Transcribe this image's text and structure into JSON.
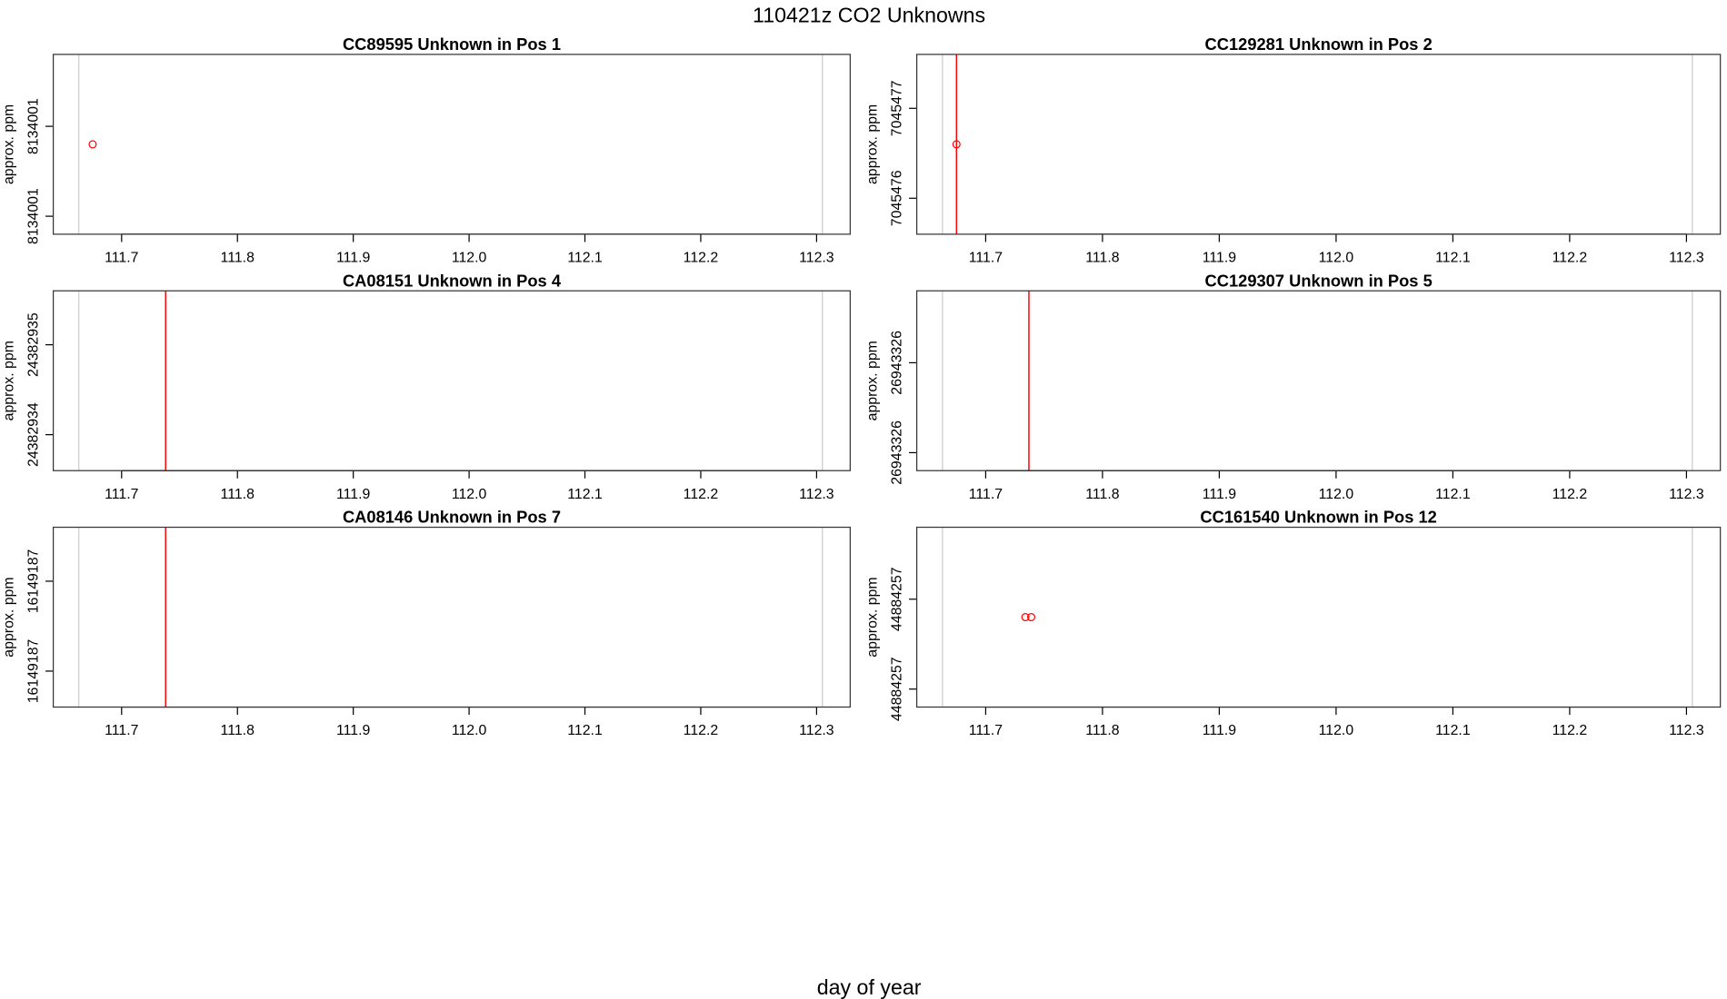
{
  "title": "110421z  CO2 Unknowns",
  "xlabel": "day of year",
  "chart_data": [
    {
      "type": "scatter",
      "title": "CC89595    Unknown in Pos 1",
      "ylabel": "approx. ppm",
      "xlim": [
        111.641,
        112.329
      ],
      "xticks": [
        111.7,
        111.8,
        111.9,
        {
          "value": 112,
          "label": "112.0"
        },
        112.1,
        112.2,
        112.3
      ],
      "ylim": [
        8134000.5,
        8134001.5
      ],
      "yticks": [
        {
          "value": 8134000.6,
          "label": "8134001"
        },
        {
          "value": 8134001.1,
          "label": "8134001"
        }
      ],
      "x": [
        111.675
      ],
      "y": [
        8134001.0
      ],
      "color": "#ff0000",
      "guide_lines": {
        "color": "#d3d3d3",
        "values": [
          111.663,
          112.305
        ]
      },
      "event_lines": {
        "color": "#ff0000",
        "values": []
      }
    },
    {
      "type": "scatter",
      "title": "CC129281    Unknown in Pos 2",
      "ylabel": "approx. ppm",
      "xlim": [
        111.641,
        112.329
      ],
      "xticks": [
        111.7,
        111.8,
        111.9,
        {
          "value": 112,
          "label": "112.0"
        },
        112.1,
        112.2,
        112.3
      ],
      "ylim": [
        7045476.1,
        7045477.1
      ],
      "yticks": [
        {
          "value": 7045476.3,
          "label": "7045476"
        },
        {
          "value": 7045476.8,
          "label": "7045477"
        }
      ],
      "x": [
        111.675
      ],
      "y": [
        7045476.6
      ],
      "color": "#ff0000",
      "guide_lines": {
        "color": "#d3d3d3",
        "values": [
          111.663,
          112.305
        ]
      },
      "event_lines": {
        "color": "#ff0000",
        "values": [
          111.675
        ]
      }
    },
    {
      "type": "scatter",
      "title": "CA08151    Unknown in Pos 4",
      "ylabel": "approx. ppm",
      "xlim": [
        111.641,
        112.329
      ],
      "xticks": [
        111.7,
        111.8,
        111.9,
        {
          "value": 112,
          "label": "112.0"
        },
        112.1,
        112.2,
        112.3
      ],
      "ylim": [
        24382934.1,
        24382935.1
      ],
      "yticks": [
        {
          "value": 24382934.3,
          "label": "24382934"
        },
        {
          "value": 24382934.8,
          "label": "24382935"
        }
      ],
      "x": [],
      "y": [],
      "color": "#ff0000",
      "guide_lines": {
        "color": "#d3d3d3",
        "values": [
          111.663,
          112.305
        ]
      },
      "event_lines": {
        "color": "#ff0000",
        "values": [
          111.738
        ]
      }
    },
    {
      "type": "scatter",
      "title": "CC129307    Unknown in Pos 5",
      "ylabel": "approx. ppm",
      "xlim": [
        111.641,
        112.329
      ],
      "xticks": [
        111.7,
        111.8,
        111.9,
        {
          "value": 112,
          "label": "112.0"
        },
        112.1,
        112.2,
        112.3
      ],
      "ylim": [
        26943325.6,
        26943326.6
      ],
      "yticks": [
        {
          "value": 26943325.7,
          "label": "26943326"
        },
        {
          "value": 26943326.2,
          "label": "26943326"
        }
      ],
      "x": [],
      "y": [],
      "color": "#ff0000",
      "guide_lines": {
        "color": "#d3d3d3",
        "values": [
          111.663,
          112.305
        ]
      },
      "event_lines": {
        "color": "#ff0000",
        "values": [
          111.737
        ]
      }
    },
    {
      "type": "scatter",
      "title": "CA08146    Unknown in Pos 7",
      "ylabel": "approx. ppm",
      "xlim": [
        111.641,
        112.329
      ],
      "xticks": [
        111.7,
        111.8,
        111.9,
        {
          "value": 112,
          "label": "112.0"
        },
        112.1,
        112.2,
        112.3
      ],
      "ylim": [
        16149186.3,
        16149187.3
      ],
      "yticks": [
        {
          "value": 16149186.5,
          "label": "16149187"
        },
        {
          "value": 16149187.0,
          "label": "16149187"
        }
      ],
      "x": [],
      "y": [],
      "color": "#ff0000",
      "guide_lines": {
        "color": "#d3d3d3",
        "values": [
          111.663,
          112.305
        ]
      },
      "event_lines": {
        "color": "#ff0000",
        "values": [
          111.738
        ]
      }
    },
    {
      "type": "scatter",
      "title": "CC161540    Unknown in Pos 12",
      "ylabel": "approx. ppm",
      "xlim": [
        111.641,
        112.329
      ],
      "xticks": [
        111.7,
        111.8,
        111.9,
        {
          "value": 112,
          "label": "112.0"
        },
        112.1,
        112.2,
        112.3
      ],
      "ylim": [
        44884256.6,
        44884257.6
      ],
      "yticks": [
        {
          "value": 44884256.7,
          "label": "44884257"
        },
        {
          "value": 44884257.2,
          "label": "44884257"
        }
      ],
      "x": [
        111.734,
        111.739
      ],
      "y": [
        44884257.1,
        44884257.1
      ],
      "color": "#ff0000",
      "guide_lines": {
        "color": "#d3d3d3",
        "values": [
          111.663,
          112.305
        ]
      },
      "event_lines": {
        "color": "#ff0000",
        "values": []
      }
    }
  ]
}
